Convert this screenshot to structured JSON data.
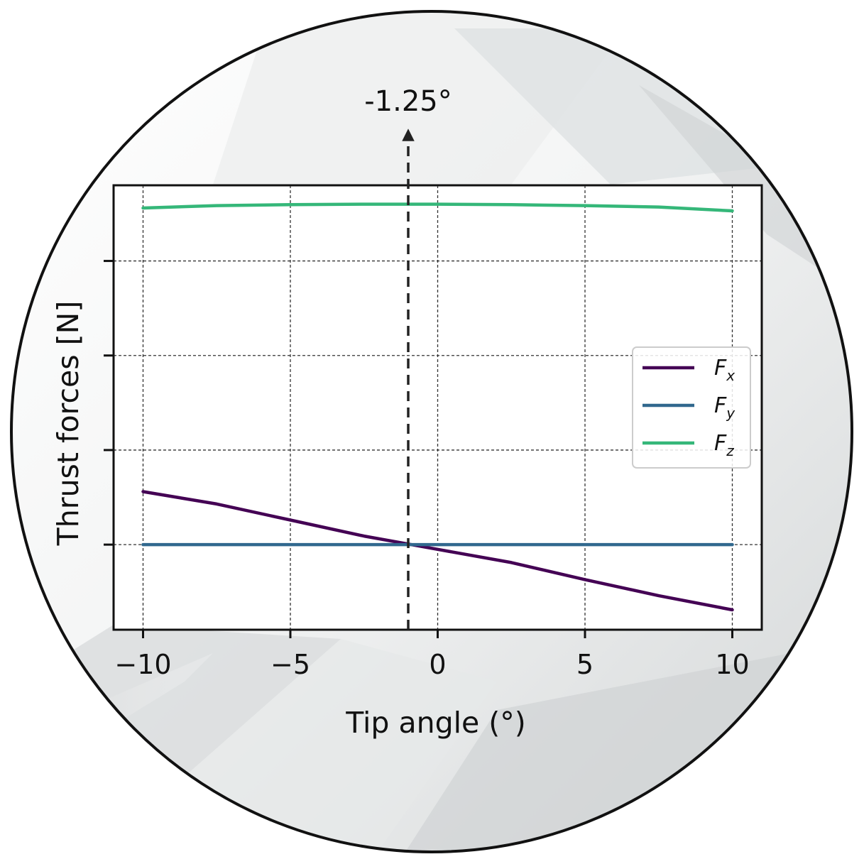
{
  "chart_data": {
    "type": "line",
    "title": "",
    "xlabel": "Tip angle (°)",
    "ylabel": "Thrust forces [N]",
    "xlim": [
      -11,
      11
    ],
    "ylim": [
      -0.9,
      3.8
    ],
    "x_ticks": [
      -10,
      -5,
      0,
      5,
      10
    ],
    "x_tick_labels": [
      "−10",
      "−5",
      "0",
      "5",
      "10"
    ],
    "y_ticks": [
      0,
      1,
      2,
      3
    ],
    "y_tick_labels_shown": false,
    "grid": true,
    "legend_position": "center-right",
    "x": [
      -10,
      -7.5,
      -5,
      -2.5,
      0,
      2.5,
      5,
      7.5,
      10
    ],
    "series": [
      {
        "name": "F",
        "subscript": "x",
        "color": "#440154",
        "values": [
          0.56,
          0.43,
          0.26,
          0.09,
          -0.05,
          -0.19,
          -0.37,
          -0.54,
          -0.69
        ]
      },
      {
        "name": "F",
        "subscript": "y",
        "color": "#31688e",
        "values": [
          0,
          0,
          0,
          0,
          0,
          0,
          0,
          0,
          0
        ]
      },
      {
        "name": "F",
        "subscript": "z",
        "color": "#35b779",
        "values": [
          3.56,
          3.585,
          3.595,
          3.6,
          3.6,
          3.595,
          3.585,
          3.57,
          3.53
        ]
      }
    ],
    "annotations": [
      {
        "text": "-1.25°",
        "x": -1.0,
        "style": "dashed vertical arrow"
      }
    ]
  }
}
